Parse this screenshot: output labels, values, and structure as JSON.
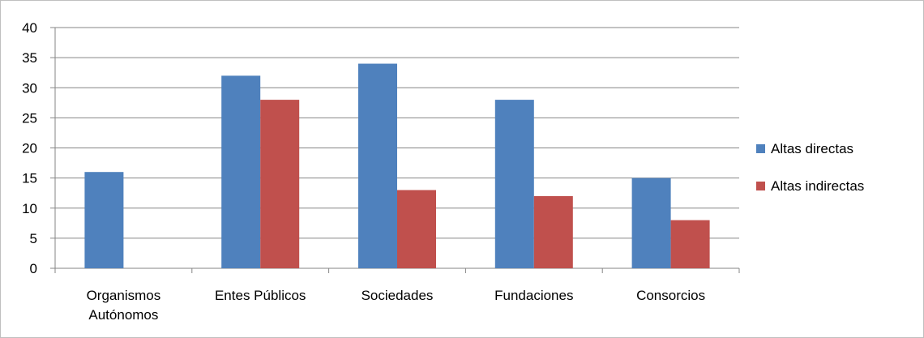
{
  "chart_data": {
    "type": "bar",
    "categories": [
      [
        "Organismos",
        "Autónomos"
      ],
      [
        "Entes Públicos"
      ],
      [
        "Sociedades"
      ],
      [
        "Fundaciones"
      ],
      [
        "Consorcios"
      ]
    ],
    "series": [
      {
        "name": "Altas directas",
        "color": "#4f81bd",
        "values": [
          16,
          32,
          34,
          28,
          15
        ]
      },
      {
        "name": "Altas indirectas",
        "color": "#c0504d",
        "values": [
          0,
          28,
          13,
          12,
          8
        ]
      }
    ],
    "ylim": [
      0,
      40
    ],
    "yticks": [
      0,
      5,
      10,
      15,
      20,
      25,
      30,
      35,
      40
    ],
    "grid": true,
    "legend": "right",
    "title": "",
    "xlabel": "",
    "ylabel": ""
  }
}
